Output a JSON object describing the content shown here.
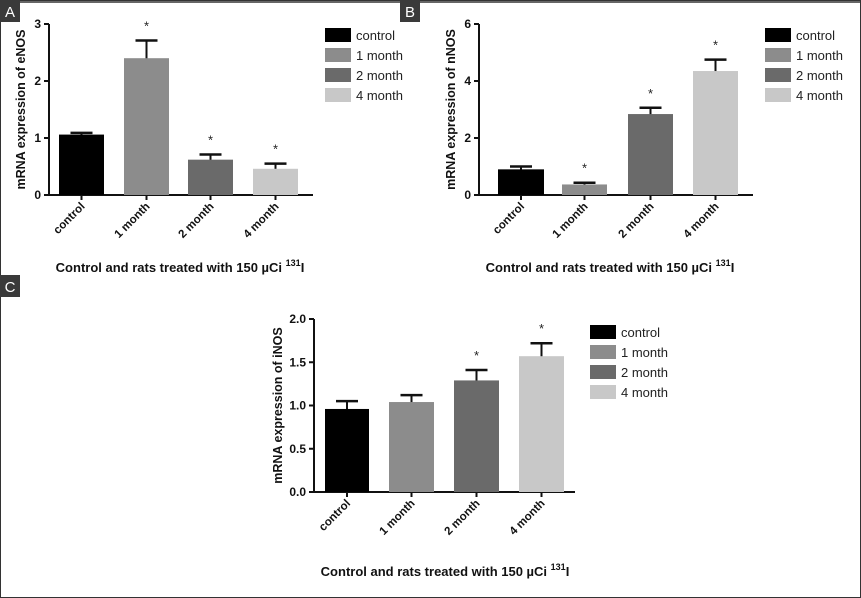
{
  "colors": {
    "control": "#000000",
    "1 month": "#8c8c8c",
    "2 month": "#6a6a6a",
    "4 month": "#c8c8c8"
  },
  "chart_data": [
    {
      "panel": "A",
      "type": "bar",
      "title": "",
      "xlabel": "Control and rats treated with 150 µCi",
      "xlabel_sup": "131",
      "xlabel_tail": "I",
      "ylabel": "mRNA expression of eNOS",
      "ylim": [
        0,
        3
      ],
      "yticks": [
        0,
        1,
        2,
        3
      ],
      "ytick_labels": [
        "0",
        "1",
        "2",
        "3"
      ],
      "categories": [
        "control",
        "1 month",
        "2 month",
        "4 month"
      ],
      "values": [
        1.06,
        2.4,
        0.62,
        0.46
      ],
      "errors": [
        0.03,
        0.31,
        0.09,
        0.09
      ],
      "significant": [
        false,
        true,
        true,
        true
      ],
      "sig_marker": "*",
      "legend": [
        "control",
        "1 month",
        "2 month",
        "4 month"
      ],
      "legend_position": "right"
    },
    {
      "panel": "B",
      "type": "bar",
      "title": "",
      "xlabel": "Control and rats treated with 150 µCi",
      "xlabel_sup": "131",
      "xlabel_tail": "I",
      "ylabel": "mRNA expression of nNOS",
      "ylim": [
        0,
        6
      ],
      "yticks": [
        0,
        2,
        4,
        6
      ],
      "ytick_labels": [
        "0",
        "2",
        "4",
        "6"
      ],
      "categories": [
        "control",
        "1 month",
        "2 month",
        "4 month"
      ],
      "values": [
        0.9,
        0.37,
        2.84,
        4.35
      ],
      "errors": [
        0.1,
        0.06,
        0.22,
        0.4
      ],
      "significant": [
        false,
        true,
        true,
        true
      ],
      "sig_marker": "*",
      "legend": [
        "control",
        "1 month",
        "2 month",
        "4 month"
      ],
      "legend_position": "right"
    },
    {
      "panel": "C",
      "type": "bar",
      "title": "",
      "xlabel": "Control and rats treated with 150 µCi",
      "xlabel_sup": "131",
      "xlabel_tail": "I",
      "ylabel": "mRNA expression of iNOS",
      "ylim": [
        0,
        2
      ],
      "yticks": [
        0,
        0.5,
        1,
        1.5,
        2
      ],
      "ytick_labels": [
        "0.0",
        "0.5",
        "1.0",
        "1.5",
        "2.0"
      ],
      "categories": [
        "control",
        "1 month",
        "2 month",
        "4 month"
      ],
      "values": [
        0.96,
        1.04,
        1.29,
        1.57
      ],
      "errors": [
        0.09,
        0.08,
        0.12,
        0.15
      ],
      "significant": [
        false,
        false,
        true,
        true
      ],
      "sig_marker": "*",
      "legend": [
        "control",
        "1 month",
        "2 month",
        "4 month"
      ],
      "legend_position": "right"
    }
  ]
}
